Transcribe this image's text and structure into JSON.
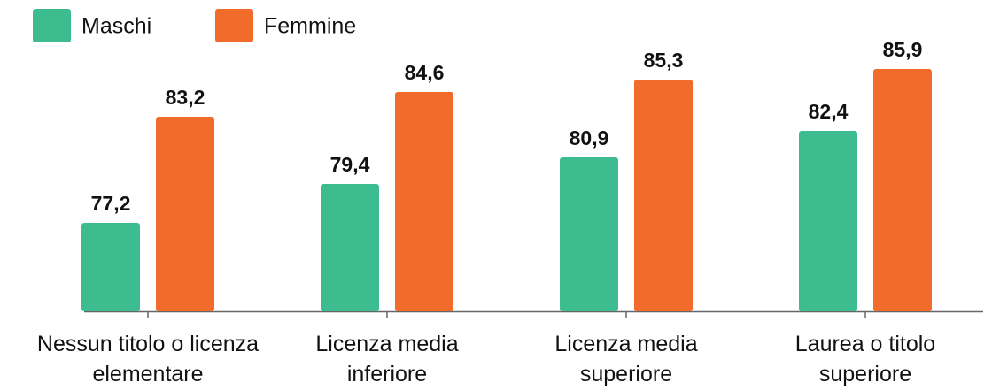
{
  "chart_data": {
    "type": "bar",
    "categories": [
      [
        "Nessun titolo o licenza",
        "elementare"
      ],
      [
        "Licenza media",
        "inferiore"
      ],
      [
        "Licenza media",
        "superiore"
      ],
      [
        "Laurea o titolo",
        "superiore"
      ]
    ],
    "series": [
      {
        "name": "Maschi",
        "color": "#3dbd8f",
        "values": [
          77.2,
          79.4,
          80.9,
          82.4
        ],
        "value_labels": [
          "77,2",
          "79,4",
          "80,9",
          "82,4"
        ]
      },
      {
        "name": "Femmine",
        "color": "#f26b2a",
        "values": [
          83.2,
          84.6,
          85.3,
          85.9
        ],
        "value_labels": [
          "83,2",
          "84,6",
          "85,3",
          "85,9"
        ]
      }
    ],
    "ylim": [
      72.2,
      88
    ]
  }
}
